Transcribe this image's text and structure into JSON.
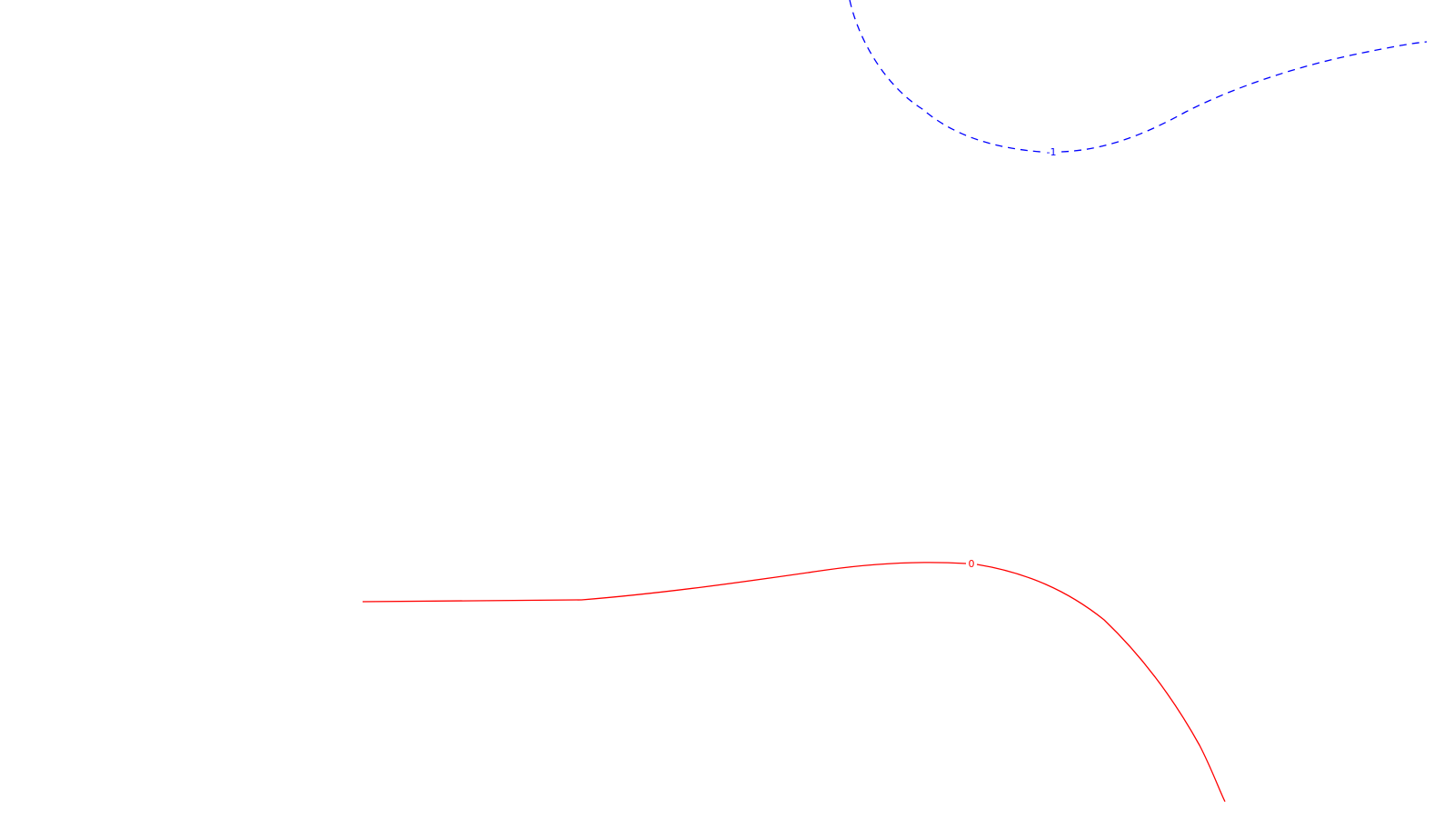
{
  "contours": [
    {
      "label": "-1",
      "color": "#0000ff",
      "style": "dashed"
    },
    {
      "label": "0",
      "color": "#ff0000",
      "style": "solid"
    }
  ]
}
